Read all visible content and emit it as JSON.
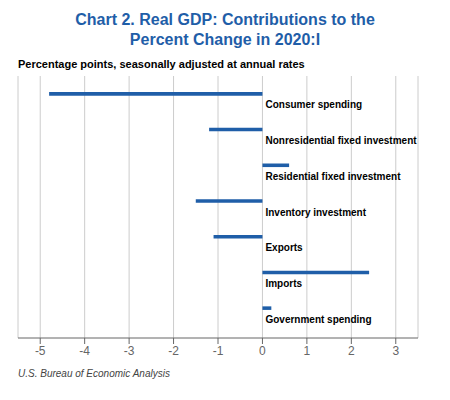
{
  "chart_data": {
    "type": "bar",
    "orientation": "horizontal",
    "title": "Chart 2. Real GDP: Contributions to the\nPercent Change in 2020:I",
    "subtitle": "Percentage points, seasonally adjusted at annual rates",
    "footer": "U.S. Bureau of Economic Analysis",
    "categories": [
      "Consumer spending",
      "Nonresidential fixed investment",
      "Residential fixed investment",
      "Inventory investment",
      "Exports",
      "Imports",
      "Government spending"
    ],
    "values": [
      -4.8,
      -1.2,
      0.6,
      -1.5,
      -1.1,
      2.4,
      0.2
    ],
    "color": "#1F5EA8",
    "xlim": [
      -5.5,
      3.5
    ],
    "xticks": [
      -5,
      -4,
      -3,
      -2,
      -1,
      0,
      1,
      2,
      3
    ],
    "grid": true,
    "tick_labels": "x"
  }
}
